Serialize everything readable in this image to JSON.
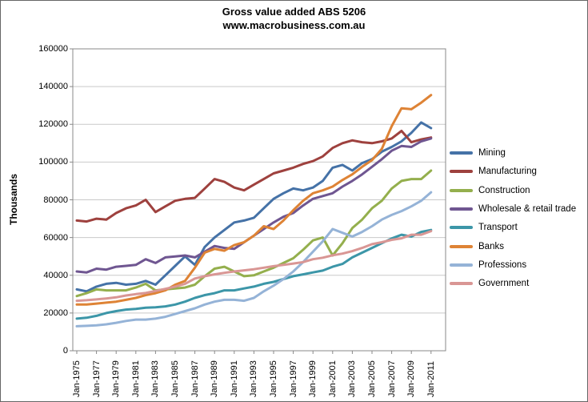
{
  "title": {
    "line1": "Gross value added ABS 5206",
    "line2": "www.macrobusiness.com.au"
  },
  "chart_data": {
    "type": "line",
    "title": "Gross value added ABS 5206",
    "subtitle": "www.macrobusiness.com.au",
    "ylabel": "Thousands",
    "xlabel": "",
    "ylim": [
      0,
      160000
    ],
    "ytick_step": 20000,
    "yticks": [
      0,
      20000,
      40000,
      60000,
      80000,
      100000,
      120000,
      140000,
      160000
    ],
    "xticklabels": [
      "Jan-1975",
      "Jan-1977",
      "Jan-1979",
      "Jan-1981",
      "Jan-1983",
      "Jan-1985",
      "Jan-1987",
      "Jan-1989",
      "Jan-1991",
      "Jan-1993",
      "Jan-1995",
      "Jan-1997",
      "Jan-1999",
      "Jan-2001",
      "Jan-2003",
      "Jan-2005",
      "Jan-2007",
      "Jan-2009",
      "Jan-2011"
    ],
    "x_years": [
      1975,
      1976,
      1977,
      1978,
      1979,
      1980,
      1981,
      1982,
      1983,
      1984,
      1985,
      1986,
      1987,
      1988,
      1989,
      1990,
      1991,
      1992,
      1993,
      1994,
      1995,
      1996,
      1997,
      1998,
      1999,
      2000,
      2001,
      2002,
      2003,
      2004,
      2005,
      2006,
      2007,
      2008,
      2009,
      2010,
      2011
    ],
    "grid": "horizontal",
    "legend_position": "right",
    "frame_color": "#888888",
    "gridline_color": "#c9c9c9",
    "series": [
      {
        "name": "Mining",
        "color": "#4572A7",
        "values": [
          32500,
          31500,
          34000,
          35500,
          36000,
          35000,
          35500,
          37000,
          35000,
          40000,
          45000,
          50000,
          45500,
          55000,
          60000,
          64000,
          68000,
          69000,
          70500,
          75500,
          80500,
          83500,
          86000,
          85000,
          86500,
          90000,
          97000,
          98500,
          95500,
          99500,
          101500,
          105500,
          108000,
          111000,
          115500,
          121000,
          118000
        ]
      },
      {
        "name": "Manufacturing",
        "color": "#9E413E",
        "values": [
          69000,
          68500,
          70000,
          69500,
          73000,
          75500,
          77000,
          80000,
          73500,
          76500,
          79500,
          80500,
          81000,
          86000,
          91000,
          89500,
          86500,
          85000,
          88000,
          91000,
          94000,
          95500,
          97000,
          99000,
          100500,
          103000,
          107500,
          110000,
          111500,
          110500,
          110000,
          111000,
          112500,
          116500,
          110500,
          112000,
          113000
        ]
      },
      {
        "name": "Construction",
        "color": "#94AF4D",
        "values": [
          29000,
          30500,
          32500,
          32000,
          32000,
          32000,
          33500,
          35500,
          32000,
          32500,
          33000,
          33500,
          35000,
          39500,
          43500,
          44500,
          42000,
          39500,
          40000,
          42000,
          44000,
          46500,
          49000,
          53500,
          58500,
          60000,
          50500,
          57000,
          65000,
          69500,
          75500,
          79500,
          86000,
          90000,
          91000,
          91000,
          95500
        ]
      },
      {
        "name": "Wholesale & retail trade",
        "color": "#6F5691",
        "values": [
          42000,
          41500,
          43500,
          43000,
          44500,
          45000,
          45500,
          48500,
          46500,
          49500,
          50000,
          50500,
          49500,
          52500,
          55500,
          54500,
          54000,
          57500,
          61000,
          64500,
          68000,
          71000,
          73000,
          77000,
          80500,
          82000,
          83500,
          87000,
          90000,
          93500,
          97500,
          101500,
          106000,
          108500,
          108000,
          111000,
          112500
        ]
      },
      {
        "name": "Transport",
        "color": "#3C96A8",
        "values": [
          17000,
          17500,
          18500,
          20000,
          21000,
          21800,
          22200,
          22800,
          23000,
          23500,
          24500,
          26000,
          28000,
          29500,
          30500,
          32000,
          32000,
          33000,
          34000,
          35500,
          36500,
          38000,
          39500,
          40500,
          41500,
          42500,
          44500,
          46000,
          49500,
          52000,
          54500,
          57000,
          59500,
          61500,
          60500,
          63000,
          64000
        ]
      },
      {
        "name": "Banks",
        "color": "#DE8335",
        "values": [
          24500,
          24500,
          25000,
          25500,
          26000,
          27000,
          28000,
          29500,
          30500,
          32000,
          35000,
          37000,
          44000,
          52000,
          54000,
          53000,
          56000,
          57500,
          61000,
          66000,
          64500,
          69000,
          74500,
          79500,
          83500,
          85000,
          87000,
          90500,
          93500,
          97500,
          101000,
          107000,
          119000,
          128500,
          128000,
          131500,
          135500
        ]
      },
      {
        "name": "Professions",
        "color": "#95B3D7",
        "values": [
          13000,
          13200,
          13500,
          14000,
          14800,
          15800,
          16500,
          16500,
          17000,
          18000,
          19500,
          21000,
          22500,
          24500,
          26000,
          27000,
          27000,
          26500,
          28000,
          31500,
          34500,
          38000,
          42000,
          47000,
          52500,
          58000,
          64500,
          62500,
          60500,
          63000,
          66000,
          69500,
          72000,
          74000,
          76500,
          79500,
          84000
        ]
      },
      {
        "name": "Government",
        "color": "#D99694",
        "values": [
          26500,
          26800,
          27200,
          27700,
          28300,
          29300,
          30000,
          30600,
          31700,
          32800,
          34000,
          35500,
          38300,
          39500,
          40500,
          41300,
          42000,
          42600,
          43200,
          44000,
          44800,
          45500,
          46200,
          47000,
          48500,
          49300,
          50600,
          51500,
          52800,
          54500,
          56500,
          57500,
          58800,
          59600,
          61500,
          61500,
          63400
        ]
      }
    ]
  }
}
